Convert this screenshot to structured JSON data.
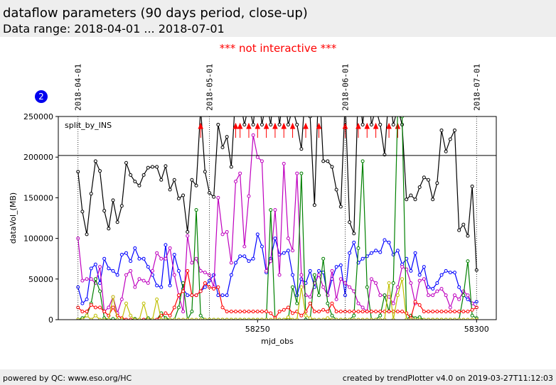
{
  "header": {
    "title": "dataflow parameters (90 days period, close-up)",
    "subtitle": "Data range: 2018-04-01 ... 2018-07-01"
  },
  "notice": "*** not interactive ***",
  "badge": "2",
  "footer": {
    "left": "powered by QC: www.eso.org/HC",
    "right": "created by trendPlotter v4.0 on 2019-03-27T11:12:03"
  },
  "chart_data": {
    "type": "line",
    "annotation": "split_by_INS",
    "xlabel": "mjd_obs",
    "ylabel": "dataVol_(MB)",
    "xlim": [
      58204.5,
      58304.5
    ],
    "xticks": [
      58250,
      58300
    ],
    "ylim": [
      0,
      250000
    ],
    "yticks": [
      0,
      50000,
      100000,
      150000,
      200000,
      250000
    ],
    "hline": 202000,
    "outlier_color": "#ff0000",
    "date_markers": [
      {
        "x": 58209,
        "label": "2018-04-01"
      },
      {
        "x": 58239,
        "label": "2018-05-01"
      },
      {
        "x": 58270,
        "label": "2018-06-01"
      },
      {
        "x": 58300,
        "label": "2018-07-01"
      }
    ],
    "x": [
      58209,
      58210,
      58211,
      58212,
      58213,
      58214,
      58215,
      58216,
      58217,
      58218,
      58219,
      58220,
      58221,
      58222,
      58223,
      58224,
      58225,
      58226,
      58227,
      58228,
      58229,
      58230,
      58231,
      58232,
      58233,
      58234,
      58235,
      58236,
      58237,
      58238,
      58239,
      58240,
      58241,
      58242,
      58243,
      58244,
      58245,
      58246,
      58247,
      58248,
      58249,
      58250,
      58251,
      58252,
      58253,
      58254,
      58255,
      58256,
      58257,
      58258,
      58259,
      58260,
      58261,
      58262,
      58263,
      58264,
      58265,
      58266,
      58267,
      58268,
      58269,
      58270,
      58271,
      58272,
      58273,
      58274,
      58275,
      58276,
      58277,
      58278,
      58279,
      58280,
      58281,
      58282,
      58283,
      58284,
      58285,
      58286,
      58287,
      58288,
      58289,
      58290,
      58291,
      58292,
      58293,
      58294,
      58295,
      58296,
      58297,
      58298,
      58299,
      58300
    ],
    "series": [
      {
        "color": "#000000",
        "flag_outliers": true,
        "values": [
          182000,
          133000,
          105000,
          155000,
          195000,
          183000,
          134000,
          112000,
          147000,
          120000,
          140000,
          193000,
          178000,
          170000,
          165000,
          178000,
          187000,
          188000,
          188000,
          172000,
          189000,
          160000,
          172000,
          149000,
          153000,
          108000,
          172000,
          165000,
          260000,
          182000,
          156000,
          151000,
          240000,
          212000,
          225000,
          188000,
          280000,
          270000,
          240000,
          265000,
          240000,
          290000,
          240000,
          270000,
          240000,
          300000,
          240000,
          280000,
          240000,
          260000,
          240000,
          210000,
          290000,
          250000,
          141000,
          300000,
          195000,
          195000,
          188000,
          160000,
          139000,
          270000,
          120000,
          106000,
          290000,
          240000,
          300000,
          240000,
          260000,
          240000,
          203000,
          280000,
          240000,
          260000,
          240000,
          148000,
          153000,
          148000,
          163000,
          175000,
          172000,
          148000,
          168000,
          233000,
          207000,
          222000,
          233000,
          110000,
          117000,
          103000,
          164000,
          61000
        ]
      },
      {
        "color": "#0000ff",
        "values": [
          40000,
          20000,
          25000,
          63000,
          68000,
          45000,
          75000,
          63000,
          60000,
          55000,
          80000,
          82000,
          72000,
          88000,
          75000,
          75000,
          65000,
          55000,
          42000,
          40000,
          92000,
          42000,
          80000,
          60000,
          38000,
          30000,
          30000,
          30000,
          35000,
          40000,
          48000,
          55000,
          30000,
          30000,
          30000,
          55000,
          70000,
          78000,
          78000,
          72000,
          75000,
          105000,
          90000,
          58000,
          75000,
          100000,
          80000,
          82000,
          85000,
          55000,
          30000,
          50000,
          45000,
          60000,
          40000,
          60000,
          58000,
          30000,
          50000,
          65000,
          67000,
          30000,
          82000,
          95000,
          70000,
          75000,
          78000,
          82000,
          85000,
          83000,
          98000,
          95000,
          80000,
          85000,
          68000,
          75000,
          60000,
          82000,
          55000,
          65000,
          40000,
          38000,
          45000,
          55000,
          60000,
          58000,
          58000,
          40000,
          30000,
          25000,
          20000,
          22000
        ]
      },
      {
        "color": "#bf00bf",
        "values": [
          100000,
          48000,
          50000,
          50000,
          45000,
          65000,
          10000,
          15000,
          28000,
          8000,
          25000,
          55000,
          60000,
          40000,
          50000,
          48000,
          45000,
          60000,
          82000,
          75000,
          75000,
          88000,
          55000,
          30000,
          10000,
          103000,
          70000,
          75000,
          60000,
          58000,
          55000,
          40000,
          150000,
          105000,
          108000,
          70000,
          170000,
          180000,
          90000,
          152000,
          227000,
          200000,
          195000,
          60000,
          72000,
          135000,
          55000,
          192000,
          100000,
          85000,
          180000,
          55000,
          30000,
          28000,
          45000,
          55000,
          40000,
          30000,
          60000,
          25000,
          50000,
          45000,
          40000,
          35000,
          20000,
          15000,
          10000,
          50000,
          45000,
          30000,
          30000,
          28000,
          20000,
          40000,
          65000,
          62000,
          45000,
          20000,
          48000,
          50000,
          30000,
          30000,
          35000,
          38000,
          30000,
          15000,
          30000,
          25000,
          35000,
          30000,
          20000,
          15000
        ]
      },
      {
        "color": "#008000",
        "values": [
          0,
          2000,
          5000,
          20000,
          50000,
          35000,
          2000,
          0,
          1000,
          0,
          0,
          0,
          0,
          1000,
          0,
          0,
          2000,
          0,
          0,
          8000,
          2000,
          0,
          0,
          15000,
          45000,
          0,
          10000,
          135000,
          5000,
          0,
          0,
          0,
          0,
          0,
          0,
          0,
          0,
          0,
          0,
          0,
          0,
          0,
          0,
          0,
          135000,
          0,
          0,
          0,
          0,
          40000,
          20000,
          180000,
          0,
          0,
          55000,
          30000,
          75000,
          20000,
          5000,
          0,
          0,
          0,
          0,
          5000,
          88000,
          195000,
          40000,
          0,
          0,
          5000,
          30000,
          10000,
          45000,
          260000,
          250000,
          0,
          5000,
          2000,
          3000,
          0,
          0,
          0,
          0,
          0,
          0,
          0,
          0,
          0,
          30000,
          72000,
          5000,
          2000
        ]
      },
      {
        "color": "#ff0000",
        "values": [
          15000,
          10000,
          10000,
          18000,
          15000,
          15000,
          10000,
          5000,
          15000,
          5000,
          2000,
          0,
          0,
          0,
          0,
          0,
          0,
          0,
          0,
          5000,
          8000,
          5000,
          15000,
          30000,
          35000,
          60000,
          30000,
          30000,
          35000,
          45000,
          40000,
          38000,
          40000,
          15000,
          10000,
          10000,
          10000,
          10000,
          10000,
          10000,
          10000,
          10000,
          10000,
          10000,
          8000,
          2000,
          10000,
          12000,
          15000,
          8000,
          10000,
          5000,
          10000,
          20000,
          10000,
          10000,
          12000,
          10000,
          20000,
          10000,
          10000,
          10000,
          10000,
          10000,
          10000,
          10000,
          10000,
          10000,
          10000,
          10000,
          10000,
          10000,
          10000,
          10000,
          10000,
          8000,
          2000,
          22000,
          18000,
          10000,
          10000,
          10000,
          10000,
          10000,
          10000,
          10000,
          10000,
          10000,
          10000,
          10000,
          12000,
          15000
        ]
      },
      {
        "color": "#bfbf00",
        "values": [
          0,
          0,
          5000,
          0,
          5000,
          0,
          0,
          0,
          28000,
          0,
          0,
          20000,
          5000,
          0,
          0,
          20000,
          0,
          0,
          25000,
          0,
          0,
          0,
          0,
          0,
          0,
          0,
          0,
          0,
          0,
          0,
          0,
          0,
          0,
          0,
          0,
          0,
          0,
          0,
          0,
          0,
          0,
          0,
          0,
          0,
          0,
          0,
          0,
          0,
          3000,
          0,
          0,
          40000,
          5000,
          2000,
          0,
          0,
          0,
          2000,
          0,
          0,
          0,
          0,
          0,
          0,
          0,
          0,
          0,
          0,
          0,
          0,
          0,
          45000,
          0,
          30000,
          50000,
          0,
          0,
          0,
          0,
          0,
          0,
          0,
          0,
          0,
          0,
          0,
          0,
          0,
          0,
          0,
          0,
          0
        ]
      }
    ]
  }
}
